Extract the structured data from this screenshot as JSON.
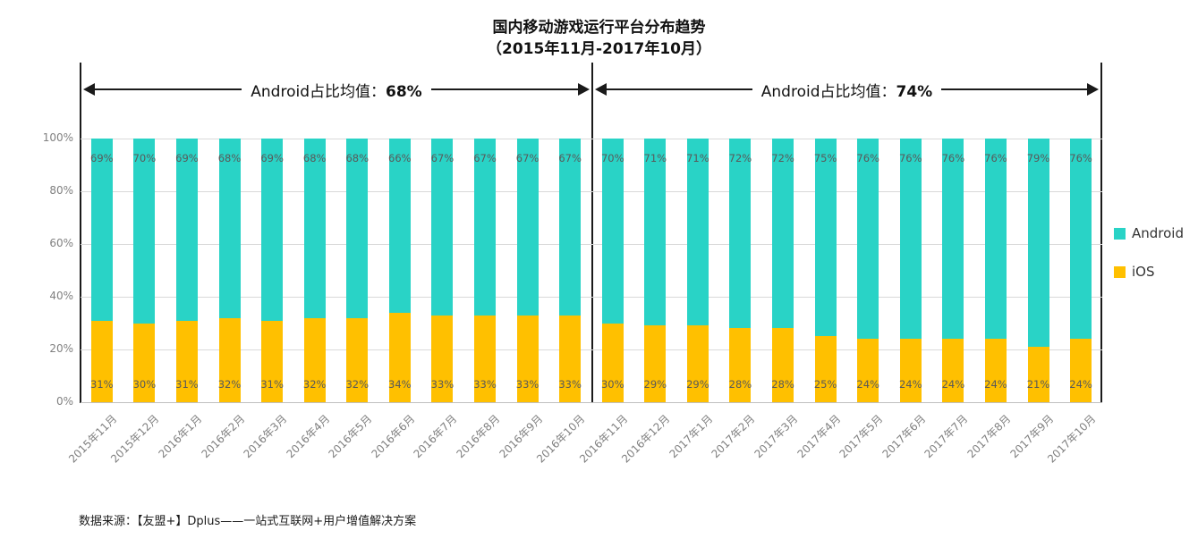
{
  "title": {
    "line1": "国内移动游戏运行平台分布趋势",
    "line2": "（2015年11月-2017年10月）"
  },
  "annotations": {
    "left": {
      "prefix": "Android占比均值：",
      "value": "68%"
    },
    "right": {
      "prefix": "Android占比均值：",
      "value": "74%"
    }
  },
  "legend": [
    {
      "label": "Android",
      "color": "#29d3c6"
    },
    {
      "label": "iOS",
      "color": "#ffc000"
    }
  ],
  "footer": "数据来源：【友盟+】Dplus——一站式互联网+用户增值解决方案",
  "chart_data": {
    "type": "bar",
    "stacked": true,
    "title": "国内移动游戏运行平台分布趋势（2015年11月-2017年10月）",
    "categories": [
      "2015年11月",
      "2015年12月",
      "2016年1月",
      "2016年2月",
      "2016年3月",
      "2016年4月",
      "2016年5月",
      "2016年6月",
      "2016年7月",
      "2016年8月",
      "2016年9月",
      "2016年10月",
      "2016年11月",
      "2016年12月",
      "2017年1月",
      "2017年2月",
      "2017年3月",
      "2017年4月",
      "2017年5月",
      "2017年6月",
      "2017年7月",
      "2017年8月",
      "2017年9月",
      "2017年10月"
    ],
    "series": [
      {
        "name": "iOS",
        "color": "#ffc000",
        "values": [
          31,
          30,
          31,
          32,
          31,
          32,
          32,
          34,
          33,
          33,
          33,
          33,
          30,
          29,
          29,
          28,
          28,
          25,
          24,
          24,
          24,
          24,
          21,
          24
        ]
      },
      {
        "name": "Android",
        "color": "#29d3c6",
        "values": [
          69,
          70,
          69,
          68,
          69,
          68,
          68,
          66,
          67,
          67,
          67,
          67,
          70,
          71,
          71,
          72,
          72,
          75,
          76,
          76,
          76,
          76,
          79,
          76
        ]
      }
    ],
    "yticks": [
      "0%",
      "20%",
      "40%",
      "60%",
      "80%",
      "100%"
    ],
    "ylim": [
      0,
      100
    ],
    "grid": true,
    "legend_position": "right"
  }
}
